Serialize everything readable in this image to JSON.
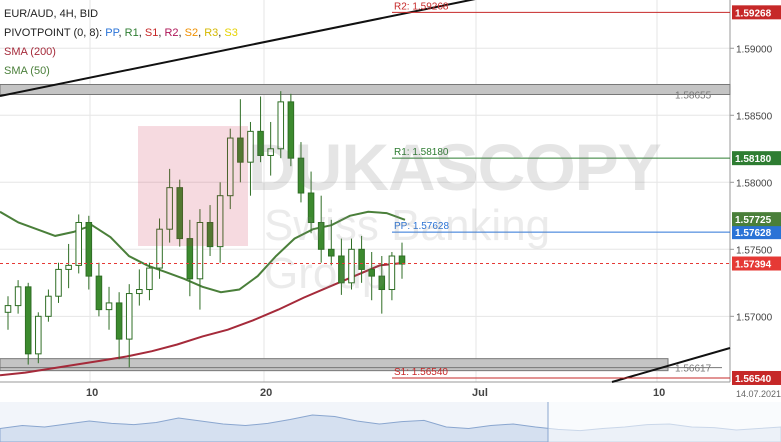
{
  "legend": {
    "symbol": "EUR/AUD, 4H, BID",
    "pivot_prefix": "PIVOTPOINT (0, 8):",
    "pivot_items": [
      "PP",
      "R1",
      "S1",
      "R2",
      "S2",
      "R3",
      "S3"
    ],
    "sma200": "SMA (200)",
    "sma50": "SMA (50)"
  },
  "watermark": {
    "main": "DUKASCOPY",
    "sub": "Swiss Banking Group"
  },
  "colors": {
    "pp": "#2a73d6",
    "r1": "#2e7d32",
    "s1": "#c62828",
    "r2": "#c62828",
    "sma200": "#a52a3a",
    "sma50": "#4a7f3a",
    "candle": "#3c8a2e",
    "price": "#e53935",
    "zone": "#b8b8b8"
  },
  "chart_data": {
    "type": "candlestick",
    "title": "EUR/AUD, 4H, BID",
    "ylim": [
      1.5651,
      1.5936
    ],
    "y_ticks": [
      "1.59000",
      "1.58500",
      "1.58000",
      "1.57500",
      "1.57000"
    ],
    "x_ticks": [
      "10",
      "20",
      "Jul",
      "10"
    ],
    "date_label": "14.07.2021",
    "levels": [
      {
        "label": "R2: 1.59268",
        "value": 1.59268,
        "tag": "1.59268",
        "color": "#c62828"
      },
      {
        "label": "R1: 1.58180",
        "value": 1.5818,
        "tag": "1.58180",
        "color": "#2e7d32"
      },
      {
        "label": "PP: 1.57628",
        "value": 1.57628,
        "tag": "1.57628",
        "color": "#2a73d6"
      },
      {
        "label": "S1: 1.56540",
        "value": 1.5654,
        "tag": "1.56540",
        "color": "#c62828"
      }
    ],
    "zones": [
      {
        "label": "1.58655",
        "value": 1.58655
      },
      {
        "label": "1.56617",
        "value": 1.56617
      }
    ],
    "sma50_last": "1.57725",
    "price_last": "1.57394",
    "sma200": [
      1.5656,
      1.5658,
      1.5661,
      1.5664,
      1.5667,
      1.567,
      1.5674,
      1.5679,
      1.5685,
      1.569,
      1.5697,
      1.5705,
      1.5714,
      1.5722,
      1.573,
      1.5738,
      1.574
    ],
    "sma50": [
      1.5778,
      1.577,
      1.5765,
      1.576,
      1.5763,
      1.5768,
      1.5759,
      1.5745,
      1.5738,
      1.5733,
      1.5728,
      1.5722,
      1.5718,
      1.572,
      1.573,
      1.5745,
      1.5758,
      1.5765,
      1.5768,
      1.5775,
      1.5778,
      1.5777,
      1.5772
    ],
    "candles": [
      [
        1.5703,
        1.5715,
        1.569,
        1.5708
      ],
      [
        1.5708,
        1.5727,
        1.5702,
        1.5722
      ],
      [
        1.5722,
        1.5725,
        1.5664,
        1.5672
      ],
      [
        1.5672,
        1.5703,
        1.5665,
        1.57
      ],
      [
        1.57,
        1.572,
        1.5696,
        1.5715
      ],
      [
        1.5715,
        1.574,
        1.571,
        1.5735
      ],
      [
        1.5735,
        1.5754,
        1.5721,
        1.5738
      ],
      [
        1.5738,
        1.5776,
        1.5732,
        1.577
      ],
      [
        1.577,
        1.5775,
        1.572,
        1.573
      ],
      [
        1.573,
        1.574,
        1.57,
        1.5705
      ],
      [
        1.5705,
        1.5722,
        1.569,
        1.571
      ],
      [
        1.571,
        1.5718,
        1.5668,
        1.5683
      ],
      [
        1.5683,
        1.5724,
        1.5662,
        1.5717
      ],
      [
        1.5717,
        1.5735,
        1.5708,
        1.572
      ],
      [
        1.572,
        1.574,
        1.5712,
        1.5736
      ],
      [
        1.5736,
        1.5773,
        1.5728,
        1.5765
      ],
      [
        1.5765,
        1.581,
        1.5755,
        1.5796
      ],
      [
        1.5796,
        1.5802,
        1.5752,
        1.5758
      ],
      [
        1.5758,
        1.5772,
        1.5715,
        1.5728
      ],
      [
        1.5728,
        1.578,
        1.5705,
        1.577
      ],
      [
        1.577,
        1.5783,
        1.5745,
        1.5752
      ],
      [
        1.5752,
        1.58,
        1.574,
        1.579
      ],
      [
        1.579,
        1.584,
        1.578,
        1.5833
      ],
      [
        1.5833,
        1.5862,
        1.58,
        1.5815
      ],
      [
        1.5815,
        1.5845,
        1.579,
        1.5838
      ],
      [
        1.5838,
        1.5864,
        1.5815,
        1.582
      ],
      [
        1.582,
        1.5845,
        1.5805,
        1.5825
      ],
      [
        1.5825,
        1.5868,
        1.5818,
        1.586
      ],
      [
        1.586,
        1.5866,
        1.5812,
        1.5818
      ],
      [
        1.5818,
        1.583,
        1.5785,
        1.5792
      ],
      [
        1.5792,
        1.5808,
        1.5762,
        1.577
      ],
      [
        1.577,
        1.579,
        1.574,
        1.575
      ],
      [
        1.575,
        1.5772,
        1.5738,
        1.5745
      ],
      [
        1.5745,
        1.5758,
        1.5716,
        1.5725
      ],
      [
        1.5725,
        1.5758,
        1.572,
        1.575
      ],
      [
        1.575,
        1.576,
        1.5725,
        1.5735
      ],
      [
        1.5735,
        1.5748,
        1.5712,
        1.573
      ],
      [
        1.573,
        1.5745,
        1.5702,
        1.572
      ],
      [
        1.572,
        1.5748,
        1.5712,
        1.5745
      ],
      [
        1.5745,
        1.5755,
        1.5728,
        1.5739
      ]
    ]
  },
  "navigator": {
    "values": [
      0.45,
      0.55,
      0.5,
      0.6,
      0.7,
      0.62,
      0.58,
      0.65,
      0.8,
      0.7,
      0.6,
      0.55,
      0.62,
      0.75,
      0.9,
      0.85,
      0.7,
      0.6,
      0.68,
      0.72,
      0.5,
      0.45,
      0.55,
      0.6,
      0.5,
      0.42,
      0.38,
      0.45,
      0.5,
      0.58,
      0.6,
      0.5,
      0.48,
      0.4,
      0.45,
      0.5
    ]
  }
}
